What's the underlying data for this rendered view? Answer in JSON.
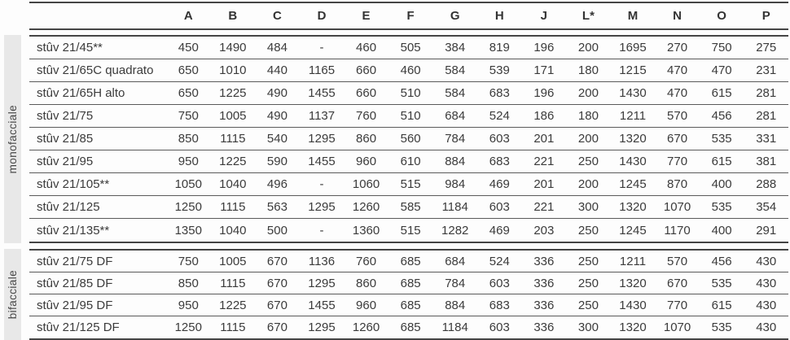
{
  "table": {
    "columns": [
      "A",
      "B",
      "C",
      "D",
      "E",
      "F",
      "G",
      "H",
      "J",
      "L*",
      "M",
      "N",
      "O",
      "P"
    ],
    "groups": [
      {
        "label": "monofacciale",
        "rows": [
          {
            "model": "stûv 21/45**",
            "values": [
              "450",
              "1490",
              "484",
              "-",
              "460",
              "505",
              "384",
              "819",
              "196",
              "200",
              "1695",
              "270",
              "750",
              "275"
            ]
          },
          {
            "model": "stûv 21/65C quadrato",
            "values": [
              "650",
              "1010",
              "440",
              "1165",
              "660",
              "460",
              "584",
              "539",
              "171",
              "180",
              "1215",
              "470",
              "470",
              "231"
            ]
          },
          {
            "model": "stûv 21/65H alto",
            "values": [
              "650",
              "1225",
              "490",
              "1455",
              "660",
              "510",
              "584",
              "683",
              "196",
              "200",
              "1430",
              "470",
              "615",
              "281"
            ]
          },
          {
            "model": "stûv 21/75",
            "values": [
              "750",
              "1005",
              "490",
              "1137",
              "760",
              "510",
              "684",
              "524",
              "186",
              "180",
              "1211",
              "570",
              "456",
              "281"
            ]
          },
          {
            "model": "stûv 21/85",
            "values": [
              "850",
              "1115",
              "540",
              "1295",
              "860",
              "560",
              "784",
              "603",
              "201",
              "200",
              "1320",
              "670",
              "535",
              "331"
            ]
          },
          {
            "model": "stûv 21/95",
            "values": [
              "950",
              "1225",
              "590",
              "1455",
              "960",
              "610",
              "884",
              "683",
              "221",
              "250",
              "1430",
              "770",
              "615",
              "381"
            ]
          },
          {
            "model": "stûv 21/105**",
            "values": [
              "1050",
              "1040",
              "496",
              "-",
              "1060",
              "515",
              "984",
              "469",
              "201",
              "200",
              "1245",
              "870",
              "400",
              "288"
            ]
          },
          {
            "model": "stûv 21/125",
            "values": [
              "1250",
              "1115",
              "563",
              "1295",
              "1260",
              "585",
              "1184",
              "603",
              "221",
              "300",
              "1320",
              "1070",
              "535",
              "354"
            ]
          },
          {
            "model": "stûv 21/135**",
            "values": [
              "1350",
              "1040",
              "500",
              "-",
              "1360",
              "515",
              "1282",
              "469",
              "203",
              "250",
              "1245",
              "1170",
              "400",
              "291"
            ]
          }
        ]
      },
      {
        "label": "bifacciale",
        "rows": [
          {
            "model": "stûv 21/75 DF",
            "values": [
              "750",
              "1005",
              "670",
              "1136",
              "760",
              "685",
              "684",
              "524",
              "336",
              "250",
              "1211",
              "570",
              "456",
              "430"
            ]
          },
          {
            "model": "stûv 21/85 DF",
            "values": [
              "850",
              "1115",
              "670",
              "1295",
              "860",
              "685",
              "784",
              "603",
              "336",
              "250",
              "1320",
              "670",
              "535",
              "430"
            ]
          },
          {
            "model": "stûv 21/95 DF",
            "values": [
              "950",
              "1225",
              "670",
              "1455",
              "960",
              "685",
              "884",
              "683",
              "336",
              "250",
              "1430",
              "770",
              "615",
              "430"
            ]
          },
          {
            "model": "stûv 21/125 DF",
            "values": [
              "1250",
              "1115",
              "670",
              "1295",
              "1260",
              "685",
              "1184",
              "603",
              "336",
              "300",
              "1320",
              "1070",
              "535",
              "430"
            ]
          }
        ]
      }
    ]
  },
  "colors": {
    "line_strong": "#454545",
    "line_row": "#5a5a5a",
    "text": "#3b3b3b",
    "group_bar_bg": "#e8e8e8"
  }
}
